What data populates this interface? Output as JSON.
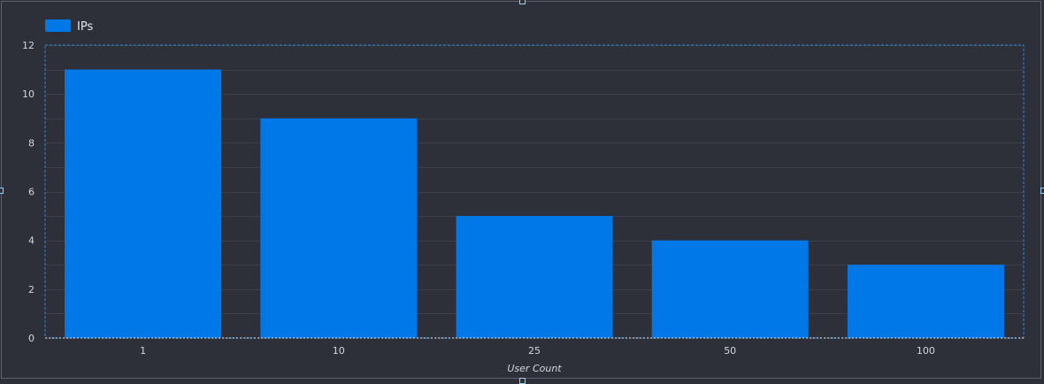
{
  "colors": {
    "background": "#2d2f39",
    "bar": "#0078e7",
    "grid": "#3c3f4b",
    "selection": "#2a8ad6"
  },
  "legend": {
    "icon": "legend-swatch",
    "label": "IPs"
  },
  "chart_data": {
    "type": "bar",
    "categories": [
      "1",
      "10",
      "25",
      "50",
      "100"
    ],
    "series": [
      {
        "name": "IPs",
        "values": [
          11,
          9,
          5,
          4,
          3
        ]
      }
    ],
    "xlabel": "User Count",
    "ylabel": "",
    "ylim": [
      0,
      12
    ],
    "yticks": [
      0,
      2,
      4,
      6,
      8,
      10,
      12
    ],
    "grid": true,
    "legend_position": "top-left"
  }
}
